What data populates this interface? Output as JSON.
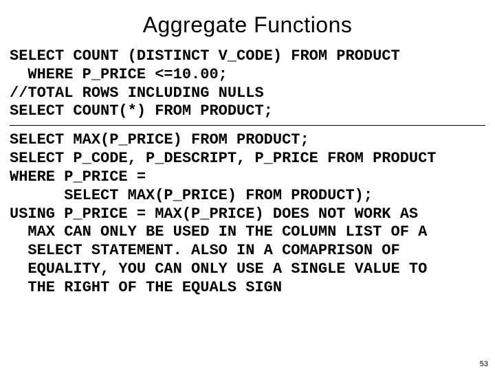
{
  "slide": {
    "title": "Aggregate Functions",
    "title_fontsize": 32,
    "title_font": "Arial",
    "title_color": "#000000",
    "code_font": "Courier New",
    "code_fontsize": 22,
    "code_weight": "bold",
    "code_color": "#000000",
    "background_color": "#ffffff",
    "divider_color": "#000000",
    "page_number": "53",
    "block1_lines": [
      "SELECT COUNT (DISTINCT V_CODE) FROM PRODUCT",
      "  WHERE P_PRICE <=10.00;",
      "//TOTAL ROWS INCLUDING NULLS",
      "SELECT COUNT(*) FROM PRODUCT;"
    ],
    "block2_lines": [
      "SELECT MAX(P_PRICE) FROM PRODUCT;",
      "SELECT P_CODE, P_DESCRIPT, P_PRICE FROM PRODUCT",
      "WHERE P_PRICE =",
      "      SELECT MAX(P_PRICE) FROM PRODUCT);",
      "USING P_PRICE = MAX(P_PRICE) DOES NOT WORK AS",
      "  MAX CAN ONLY BE USED IN THE COLUMN LIST OF A",
      "  SELECT STATEMENT. ALSO IN A COMAPRISON OF",
      "  EQUALITY, YOU CAN ONLY USE A SINGLE VALUE TO",
      "  THE RIGHT OF THE EQUALS SIGN"
    ]
  }
}
